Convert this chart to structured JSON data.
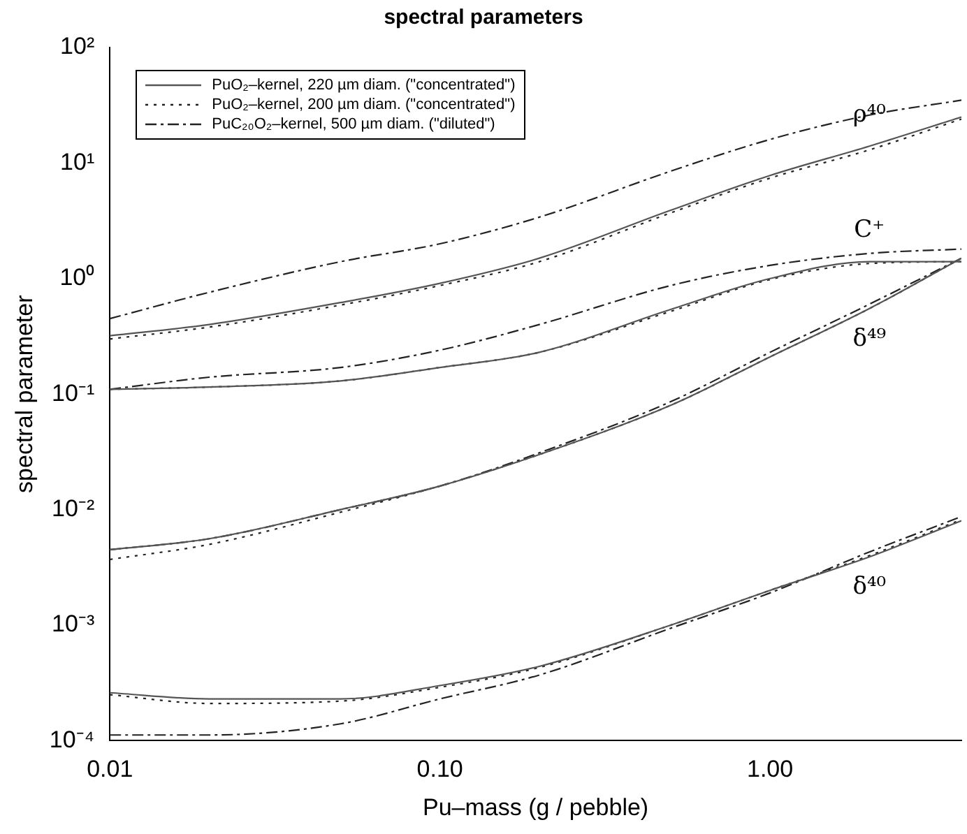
{
  "chart_data": {
    "type": "line",
    "title": "spectral parameters",
    "xlabel": "Pu–mass (g / pebble)",
    "ylabel": "spectral parameter",
    "log": "xy",
    "grid": false,
    "legend": "top left",
    "marker": "none",
    "xlim": [
      0.01,
      3.8
    ],
    "xticks": [
      0.01,
      {
        "value": 0.1,
        "label": "0.10"
      },
      {
        "value": 1,
        "label": "1.00"
      }
    ],
    "ylim": [
      0.0001,
      100
    ],
    "yticks": [
      {
        "value": 0.0001,
        "label": "10⁻⁴"
      },
      {
        "value": 0.001,
        "label": "10⁻³"
      },
      {
        "value": 0.01,
        "label": "10⁻²"
      },
      {
        "value": 0.1,
        "label": "10⁻¹"
      },
      {
        "value": 1,
        "label": "10⁰"
      },
      {
        "value": 10,
        "label": "10¹"
      },
      {
        "value": 100,
        "label": "10²"
      }
    ],
    "x": [
      0.01,
      0.02,
      0.05,
      0.1,
      0.2,
      0.5,
      1,
      2,
      3.8
    ],
    "series": [
      {
        "name": "PuO₂–kernel, 220 µm diam. (\"concentrated\")",
        "color": "#555555",
        "line_style": "solid",
        "values": [
          0.32,
          0.4,
          0.62,
          0.91,
          1.5,
          3.9,
          7.8,
          14,
          25
        ]
      },
      {
        "name": "PuO₂–kernel, 200 µm diam. (\"concentrated\")",
        "color": "#222222",
        "line_style": "dotted",
        "values": [
          0.3,
          0.38,
          0.59,
          0.87,
          1.4,
          3.7,
          7.4,
          13,
          24
        ]
      },
      {
        "name": "PuC₂₀O₂–kernel, 500 µm diam. (\"diluted\")",
        "color": "#222222",
        "line_style": "dashed",
        "values": [
          0.45,
          0.76,
          1.4,
          2,
          3.4,
          8.5,
          16,
          26,
          35
        ]
      },
      {
        "color": "#555555",
        "line_style": "solid",
        "values": [
          0.11,
          0.115,
          0.13,
          0.17,
          0.23,
          0.54,
          1,
          1.4,
          1.4
        ]
      },
      {
        "color": "#222222",
        "line_style": "dotted",
        "values": [
          0.11,
          0.115,
          0.13,
          0.17,
          0.23,
          0.52,
          0.98,
          1.35,
          1.4
        ]
      },
      {
        "color": "#222222",
        "line_style": "dashed",
        "values": [
          0.11,
          0.14,
          0.17,
          0.24,
          0.4,
          0.87,
          1.3,
          1.65,
          1.8
        ]
      },
      {
        "color": "#555555",
        "line_style": "solid",
        "values": [
          0.0045,
          0.0056,
          0.01,
          0.016,
          0.03,
          0.08,
          0.21,
          0.55,
          1.5
        ]
      },
      {
        "color": "#222222",
        "line_style": "dotted",
        "values": [
          0.0037,
          0.005,
          0.0095,
          0.016,
          0.03,
          0.08,
          0.21,
          0.55,
          1.5
        ]
      },
      {
        "color": "#222222",
        "line_style": "dashed",
        "values": [
          0.0045,
          0.0056,
          0.01,
          0.016,
          0.031,
          0.086,
          0.23,
          0.6,
          1.5
        ]
      },
      {
        "color": "#555555",
        "line_style": "solid",
        "values": [
          0.00026,
          0.00023,
          0.00023,
          0.0003,
          0.00044,
          0.001,
          0.002,
          0.0039,
          0.008
        ]
      },
      {
        "color": "#222222",
        "line_style": "dotted",
        "values": [
          0.00025,
          0.00021,
          0.00022,
          0.00029,
          0.00043,
          0.001,
          0.002,
          0.004,
          0.0082
        ]
      },
      {
        "color": "#222222",
        "line_style": "dashed",
        "values": [
          0.000112,
          0.000112,
          0.00014,
          0.00023,
          0.00037,
          0.00094,
          0.0019,
          0.0043,
          0.0087
        ]
      }
    ],
    "annotations": [
      "ρ⁴⁰",
      "C⁺",
      "δ⁴⁹",
      "δ⁴⁰"
    ]
  }
}
